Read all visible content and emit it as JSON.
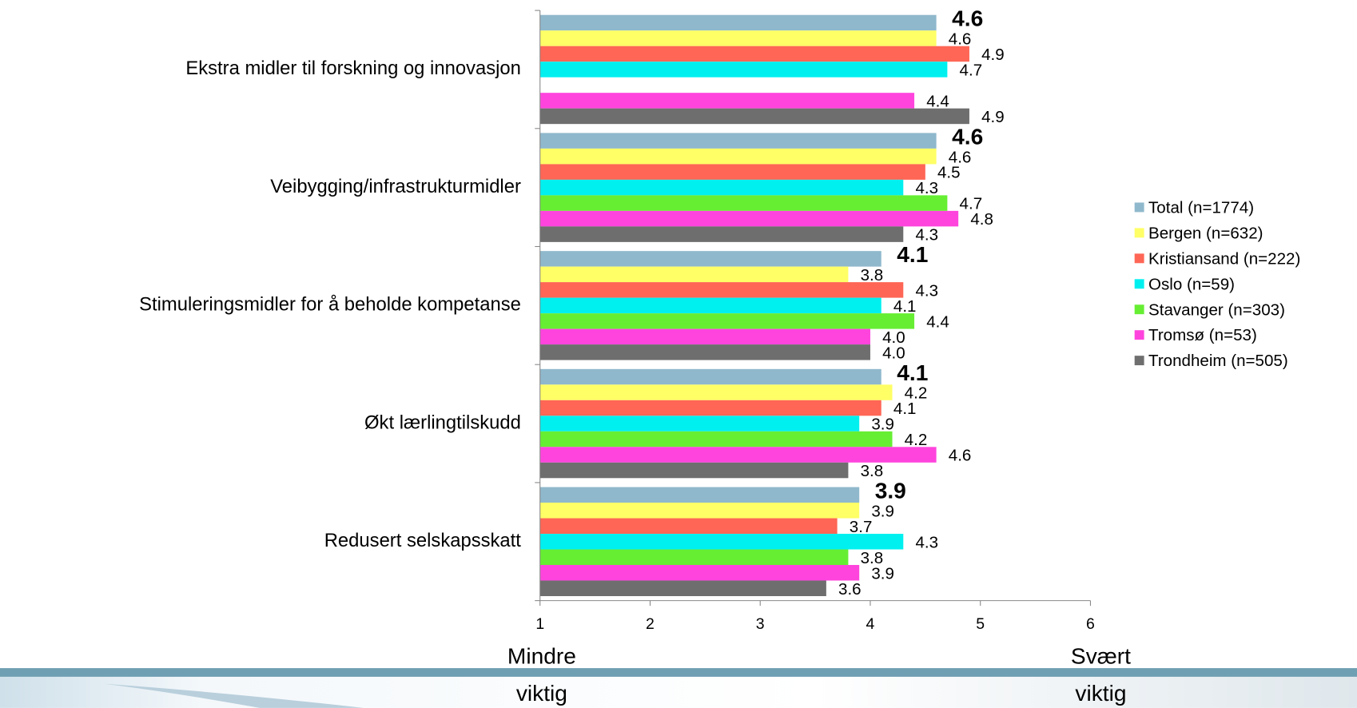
{
  "chart_data": {
    "type": "hbar",
    "categories": [
      "Ekstra midler til forskning og innovasjon",
      "Veibygging/infrastrukturmidler",
      "Stimuleringsmidler for å beholde kompetanse",
      "Økt lærlingtilskudd",
      "Redusert selskapsskatt"
    ],
    "series": [
      {
        "name": "Total (n=1774)",
        "color": "#8fb8cc",
        "values": [
          4.6,
          4.6,
          4.1,
          4.1,
          3.9
        ],
        "value_labels": [
          "4.6",
          "4.6",
          "4.1",
          "4.1",
          "3.9"
        ],
        "bold": true
      },
      {
        "name": "Bergen (n=632)",
        "color": "#ffff66",
        "values": [
          4.6,
          4.6,
          3.8,
          4.2,
          3.9
        ],
        "value_labels": [
          "4.6",
          "4.6",
          "3.8",
          "4.2",
          "3.9"
        ]
      },
      {
        "name": "Kristiansand (n=222)",
        "color": "#ff6655",
        "values": [
          4.9,
          4.5,
          4.3,
          4.1,
          3.7
        ],
        "value_labels": [
          "4.9",
          "4.5",
          "4.3",
          "4.1",
          "3.7"
        ]
      },
      {
        "name": "Oslo (n=59)",
        "color": "#00f0f0",
        "values": [
          4.7,
          4.3,
          4.1,
          3.9,
          4.3
        ],
        "value_labels": [
          "4.7",
          "4.3",
          "4.1",
          "3.9",
          "4.3"
        ]
      },
      {
        "name": "Stavanger (n=303)",
        "color": "#66ee33",
        "values": [
          null,
          4.7,
          4.4,
          4.2,
          3.8
        ],
        "value_labels": [
          null,
          "4.7",
          "4.4",
          "4.2",
          "3.8"
        ]
      },
      {
        "name": "Tromsø (n=53)",
        "color": "#ff44dd",
        "values": [
          4.4,
          4.8,
          4.0,
          4.6,
          3.9
        ],
        "value_labels": [
          "4.4",
          "4.8",
          "4.0",
          "4.6",
          "3.9"
        ]
      },
      {
        "name": "Trondheim (n=505)",
        "color": "#6e6e6e",
        "values": [
          4.9,
          4.3,
          4.0,
          3.8,
          3.6
        ],
        "value_labels": [
          "4.9",
          "4.3",
          "4.0",
          "3.8",
          "3.6"
        ]
      }
    ],
    "xlim": [
      1,
      6
    ],
    "xticks": [
      1,
      2,
      3,
      4,
      5,
      6
    ],
    "x_end_labels": [
      [
        "Mindre",
        "viktig"
      ],
      [
        "Svært",
        "viktig"
      ]
    ],
    "legend": "right"
  }
}
